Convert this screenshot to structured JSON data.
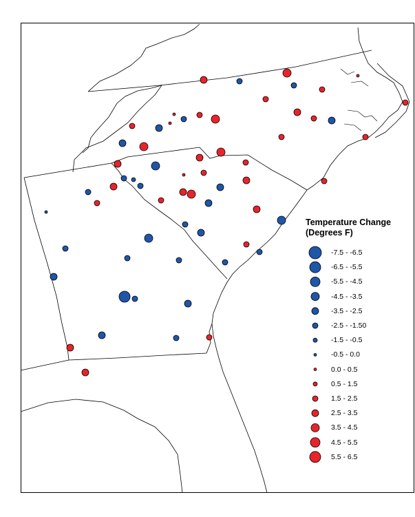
{
  "legend": {
    "title_line1": "Temperature Change",
    "title_line2": "(Degrees F)",
    "items": [
      {
        "label": "-7.5 - -6.5",
        "color": "#1f56a8"
      },
      {
        "label": "-6.5 - -5.5",
        "color": "#1f56a8"
      },
      {
        "label": "-5.5 - -4.5",
        "color": "#1f56a8"
      },
      {
        "label": "-4.5 - -3.5",
        "color": "#1f56a8"
      },
      {
        "label": "-3.5 - -2.5",
        "color": "#1f56a8"
      },
      {
        "label": "-2.5 - -1.50",
        "color": "#1f56a8"
      },
      {
        "label": "-1.5 - -0.5",
        "color": "#1f56a8"
      },
      {
        "label": "-0.5 - 0.0",
        "color": "#1f56a8"
      },
      {
        "label": "0.0 - 0.5",
        "color": "#e8242b"
      },
      {
        "label": "0.5 - 1.5",
        "color": "#e8242b"
      },
      {
        "label": "1.5 - 2.5",
        "color": "#e8242b"
      },
      {
        "label": "2.5 - 3.5",
        "color": "#e8242b"
      },
      {
        "label": "3.5 - 4.5",
        "color": "#e8242b"
      },
      {
        "label": "4.5 - 5.5",
        "color": "#e8242b"
      },
      {
        "label": "5.5 - 6.5",
        "color": "#e8242b"
      }
    ]
  },
  "colors": {
    "cooling": "#1f56a8",
    "warming": "#e8242b",
    "outline": "#000000"
  }
}
